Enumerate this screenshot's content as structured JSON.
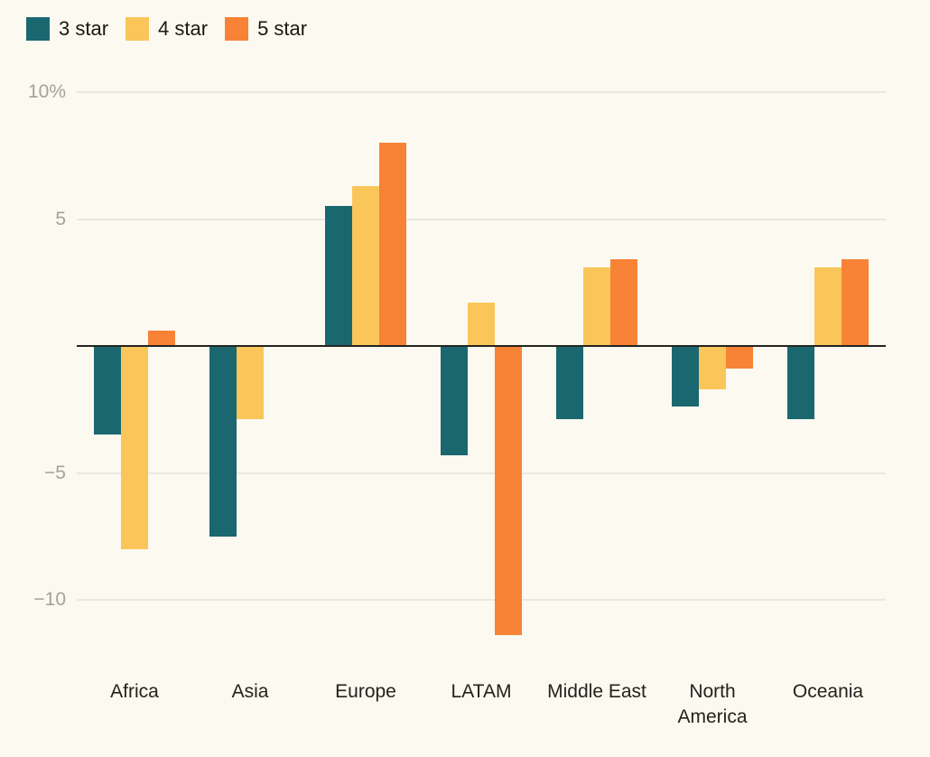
{
  "legend": {
    "items": [
      {
        "label": "3 star",
        "color": "#1B6770"
      },
      {
        "label": "4 star",
        "color": "#FAC65A"
      },
      {
        "label": "5 star",
        "color": "#F88235"
      }
    ]
  },
  "chart_data": {
    "type": "bar",
    "title": "",
    "xlabel": "",
    "ylabel": "",
    "unit": "%",
    "categories": [
      "Africa",
      "Asia",
      "Europe",
      "LATAM",
      "Middle East",
      "North America",
      "Oceania"
    ],
    "series": [
      {
        "name": "3 star",
        "color": "#1B6770",
        "values": [
          -3.5,
          -7.5,
          5.5,
          -4.3,
          -2.9,
          -2.4,
          -2.9
        ]
      },
      {
        "name": "4 star",
        "color": "#FAC65A",
        "values": [
          -8.0,
          -2.9,
          6.3,
          1.7,
          3.1,
          -1.7,
          3.1
        ]
      },
      {
        "name": "5 star",
        "color": "#F88235",
        "values": [
          0.6,
          0,
          8.0,
          -11.4,
          3.4,
          -0.9,
          3.4
        ]
      }
    ],
    "yticks": [
      {
        "label": "10%",
        "value": 10
      },
      {
        "label": "5",
        "value": 5
      },
      {
        "label": "−5",
        "value": -5
      },
      {
        "label": "−10",
        "value": -10
      }
    ],
    "ylim": [
      -12.5,
      10.5
    ],
    "grid": true,
    "legend_position": "top-left",
    "zero_baseline": true
  },
  "colors": {
    "background": "#FCF9F0",
    "gridline": "#E9E8E2",
    "zero_axis": "#242420",
    "tick_text": "#A3A39B",
    "category_text": "#23231C"
  }
}
